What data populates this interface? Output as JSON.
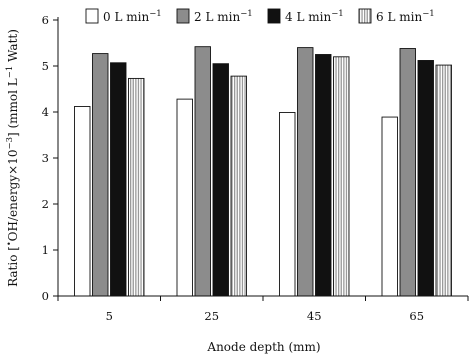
{
  "chart_data": {
    "type": "bar",
    "xlabel": "Anode depth (mm)",
    "ylabel_parts": {
      "prefix": "Ratio [",
      "oh": "OH/energy",
      "times": "×10",
      "times_exp": "−3",
      "close": "] (mmol L",
      "l_exp": "−1",
      "tail": " Watt)"
    },
    "categories": [
      "5",
      "25",
      "45",
      "65"
    ],
    "ylim": [
      0,
      6
    ],
    "yticks": [
      0,
      1,
      2,
      3,
      4,
      5,
      6
    ],
    "legend_position": "top",
    "grid": false,
    "series": [
      {
        "name": "0 L min",
        "name_exp": "−1",
        "values": [
          4.12,
          4.28,
          3.99,
          3.89
        ],
        "fill": "white",
        "color": "#ffffff"
      },
      {
        "name": "2 L min",
        "name_exp": "−1",
        "values": [
          5.27,
          5.42,
          5.4,
          5.38
        ],
        "fill": "gray",
        "color": "#8c8c8c"
      },
      {
        "name": "4 L min",
        "name_exp": "−1",
        "values": [
          5.07,
          5.05,
          5.25,
          5.12
        ],
        "fill": "black",
        "color": "#111111"
      },
      {
        "name": "6 L min",
        "name_exp": "−1",
        "values": [
          4.73,
          4.78,
          5.2,
          5.02
        ],
        "fill": "vertical-stripes",
        "color": "#bdbdbd"
      }
    ]
  }
}
